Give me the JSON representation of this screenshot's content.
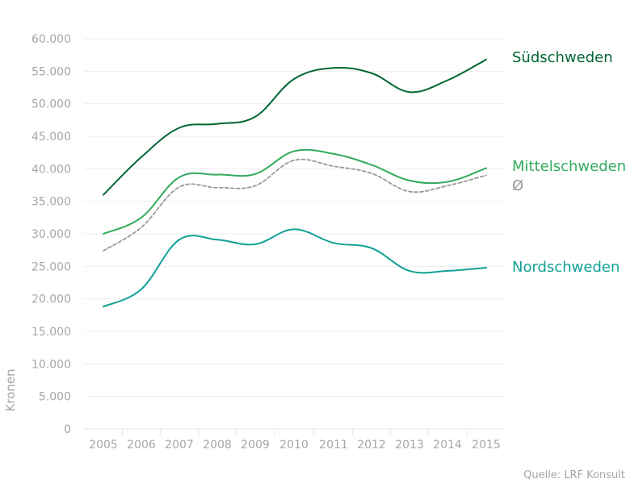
{
  "chart_data": {
    "type": "line",
    "x": [
      2005,
      2006,
      2007,
      2008,
      2009,
      2010,
      2011,
      2012,
      2013,
      2014,
      2015
    ],
    "ylabel": "Kronen",
    "ylim": [
      0,
      60000
    ],
    "ytick_labels": [
      "0",
      "5.000",
      "10.000",
      "15.000",
      "20.000",
      "25.000",
      "30.000",
      "35.000",
      "40.000",
      "45.000",
      "50.000",
      "55.000",
      "60.000"
    ],
    "xtick_labels": [
      "2005",
      "2006",
      "2007",
      "2008",
      "2009",
      "2010",
      "2011",
      "2012",
      "2013",
      "2014",
      "2015"
    ],
    "grid": "horizontal",
    "source": "Quelle: LRF Konsult",
    "series": [
      {
        "name": "Südschweden",
        "color": "#006633",
        "dashed": false,
        "values": [
          36000,
          41800,
          46300,
          46900,
          48000,
          53800,
          55500,
          54700,
          51800,
          53600,
          56800
        ]
      },
      {
        "name": "Mittelschweden",
        "color": "#33aa5e",
        "dashed": false,
        "values": [
          30000,
          32500,
          38700,
          39100,
          39200,
          42700,
          42300,
          40600,
          38200,
          38000,
          40100
        ]
      },
      {
        "name": "Ø",
        "color": "#999999",
        "dashed": true,
        "values": [
          27400,
          31000,
          37200,
          37100,
          37400,
          41300,
          40400,
          39300,
          36500,
          37400,
          39000
        ]
      },
      {
        "name": "Nordschweden",
        "color": "#12a195",
        "dashed": false,
        "values": [
          18800,
          21500,
          29100,
          29100,
          28400,
          30700,
          28600,
          27800,
          24300,
          24300,
          24800
        ]
      }
    ]
  }
}
